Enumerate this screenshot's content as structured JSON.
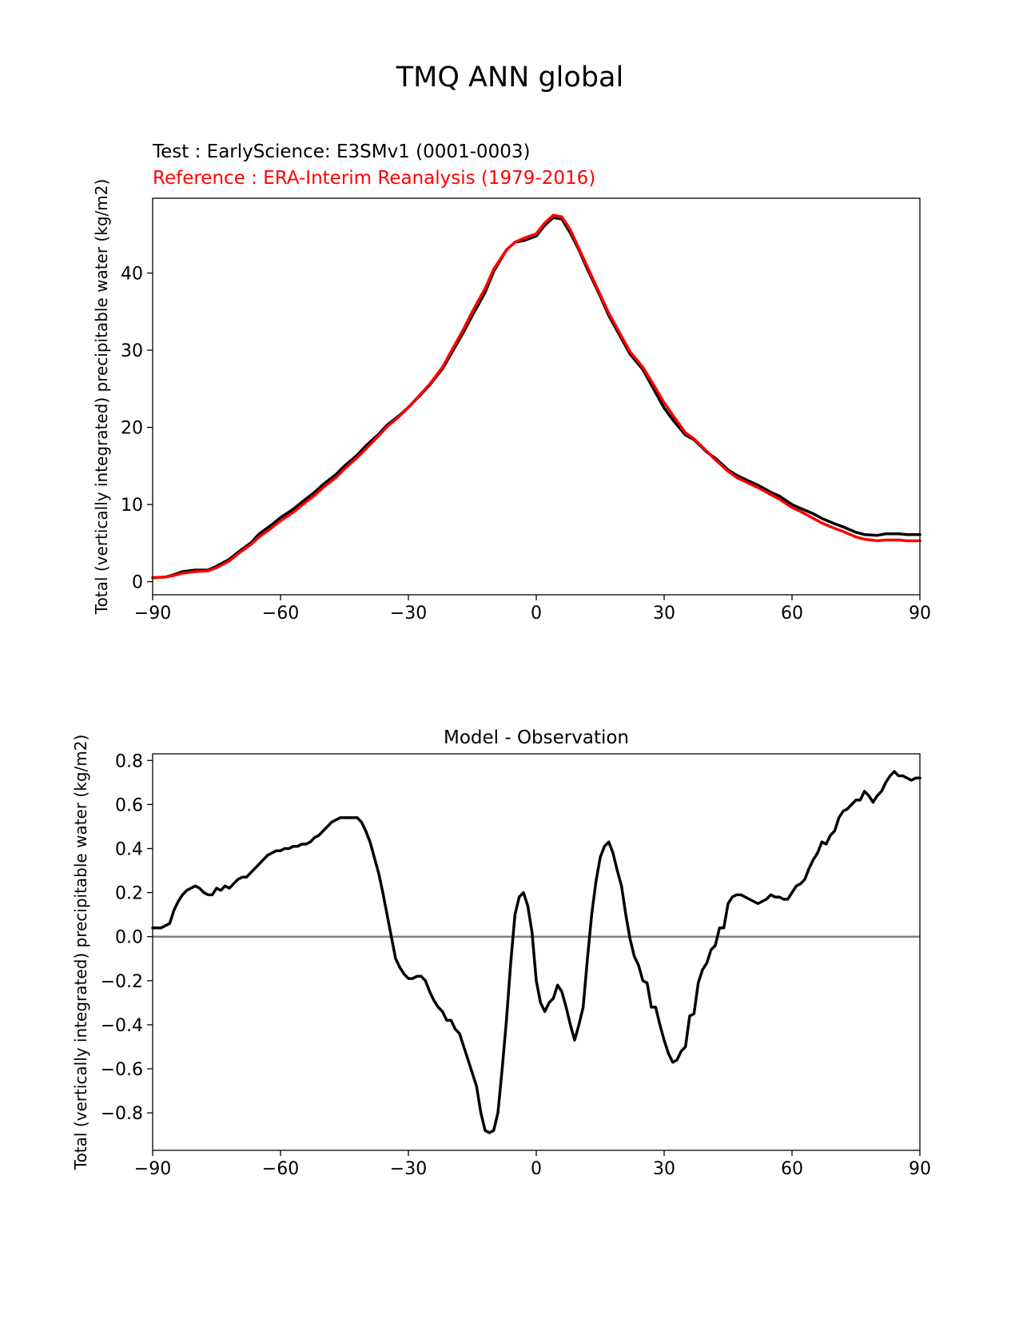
{
  "figure_title": "TMQ ANN global",
  "colors": {
    "test": "#000000",
    "reference": "#ff0000",
    "zero_line": "#808080",
    "axes": "#000000"
  },
  "chart_data": [
    {
      "type": "line",
      "test_label": "Test : EarlyScience: E3SMv1 (0001-0003)",
      "reference_label": "Reference : ERA-Interim Reanalysis (1979-2016)",
      "ylabel": "Total (vertically integrated) precipitable water (kg/m2)",
      "xlabel": "",
      "xlim": [
        -90,
        90
      ],
      "ylim": [
        -1.7,
        49.7
      ],
      "xticks": [
        -90,
        -60,
        -30,
        0,
        30,
        60,
        90
      ],
      "xtick_labels": [
        "−90",
        "−60",
        "−30",
        "0",
        "30",
        "60",
        "90"
      ],
      "yticks": [
        0,
        10,
        20,
        30,
        40
      ],
      "ytick_labels": [
        "0",
        "10",
        "20",
        "30",
        "40"
      ],
      "series": [
        {
          "name": "Test",
          "color": "#000000",
          "x": [
            -90,
            -87,
            -85,
            -83,
            -80,
            -77,
            -75,
            -72,
            -70,
            -67,
            -65,
            -62,
            -60,
            -57,
            -55,
            -52,
            -50,
            -47,
            -45,
            -42,
            -40,
            -37,
            -35,
            -32,
            -30,
            -27,
            -25,
            -22,
            -20,
            -17,
            -15,
            -12,
            -10,
            -7,
            -5,
            -3,
            0,
            2,
            4,
            6,
            8,
            10,
            12,
            15,
            17,
            20,
            22,
            25,
            27,
            30,
            32,
            35,
            37,
            40,
            42,
            45,
            47,
            50,
            52,
            55,
            57,
            60,
            62,
            65,
            67,
            70,
            72,
            75,
            77,
            80,
            82,
            85,
            87,
            90
          ],
          "y": [
            0.5,
            0.6,
            0.9,
            1.3,
            1.5,
            1.5,
            2.0,
            2.9,
            3.8,
            5.0,
            6.2,
            7.4,
            8.3,
            9.4,
            10.3,
            11.6,
            12.6,
            13.9,
            15.0,
            16.4,
            17.6,
            19.1,
            20.3,
            21.6,
            22.6,
            24.3,
            25.5,
            27.6,
            29.5,
            32.4,
            34.5,
            37.5,
            40.2,
            43.0,
            44.0,
            44.2,
            44.8,
            46.2,
            47.2,
            47.0,
            45.2,
            43.0,
            40.5,
            37.0,
            34.5,
            31.5,
            29.5,
            27.5,
            25.5,
            22.5,
            21.0,
            19.0,
            18.4,
            16.8,
            16.0,
            14.5,
            13.8,
            13.0,
            12.5,
            11.6,
            11.1,
            10.0,
            9.5,
            8.8,
            8.2,
            7.5,
            7.1,
            6.4,
            6.1,
            6.0,
            6.2,
            6.2,
            6.1,
            6.1
          ]
        },
        {
          "name": "Reference",
          "color": "#ff0000",
          "x": [
            -90,
            -87,
            -85,
            -83,
            -80,
            -77,
            -75,
            -72,
            -70,
            -67,
            -65,
            -62,
            -60,
            -57,
            -55,
            -52,
            -50,
            -47,
            -45,
            -42,
            -40,
            -37,
            -35,
            -32,
            -30,
            -27,
            -25,
            -22,
            -20,
            -17,
            -15,
            -12,
            -10,
            -7,
            -5,
            -3,
            0,
            2,
            4,
            6,
            8,
            10,
            12,
            15,
            17,
            20,
            22,
            25,
            27,
            30,
            32,
            35,
            37,
            40,
            42,
            45,
            47,
            50,
            52,
            55,
            57,
            60,
            62,
            65,
            67,
            70,
            72,
            75,
            77,
            80,
            82,
            85,
            87,
            90
          ],
          "y": [
            0.5,
            0.6,
            0.8,
            1.1,
            1.3,
            1.4,
            1.8,
            2.7,
            3.6,
            4.8,
            5.8,
            7.0,
            7.9,
            9.0,
            9.9,
            11.2,
            12.2,
            13.5,
            14.6,
            16.1,
            17.2,
            18.9,
            20.1,
            21.5,
            22.6,
            24.4,
            25.6,
            27.8,
            29.8,
            32.8,
            35.0,
            38.0,
            40.5,
            43.0,
            44.0,
            44.5,
            45.1,
            46.5,
            47.5,
            47.3,
            45.6,
            43.2,
            40.8,
            37.2,
            34.8,
            31.8,
            29.8,
            27.8,
            26.0,
            23.2,
            21.6,
            19.3,
            18.5,
            16.9,
            15.8,
            14.3,
            13.5,
            12.7,
            12.2,
            11.3,
            10.7,
            9.6,
            9.1,
            8.2,
            7.6,
            6.9,
            6.5,
            5.8,
            5.5,
            5.3,
            5.4,
            5.4,
            5.3,
            5.3
          ]
        }
      ]
    },
    {
      "type": "line",
      "title": "Model - Observation",
      "ylabel": "Total (vertically integrated) precipitable water (kg/m2)",
      "xlabel": "",
      "xlim": [
        -90,
        90
      ],
      "ylim": [
        -0.97,
        0.83
      ],
      "xticks": [
        -90,
        -60,
        -30,
        0,
        30,
        60,
        90
      ],
      "xtick_labels": [
        "−90",
        "−60",
        "−30",
        "0",
        "30",
        "60",
        "90"
      ],
      "yticks": [
        -0.8,
        -0.6,
        -0.4,
        -0.2,
        0.0,
        0.2,
        0.4,
        0.6,
        0.8
      ],
      "ytick_labels": [
        "−0.8",
        "−0.6",
        "−0.4",
        "−0.2",
        "0.0",
        "0.2",
        "0.4",
        "0.6",
        "0.8"
      ],
      "zero_line": 0,
      "series": [
        {
          "name": "Model - Observation",
          "color": "#000000",
          "x": [
            -90,
            -88,
            -87,
            -86,
            -85,
            -84,
            -83,
            -82,
            -81,
            -80,
            -79,
            -78,
            -77,
            -76,
            -75,
            -74,
            -73,
            -72,
            -71,
            -70,
            -69,
            -68,
            -67,
            -66,
            -65,
            -64,
            -63,
            -62,
            -61,
            -60,
            -59,
            -58,
            -57,
            -56,
            -55,
            -54,
            -53,
            -52,
            -51,
            -50,
            -49,
            -48,
            -47,
            -46,
            -45,
            -44,
            -43,
            -42,
            -41,
            -40,
            -39,
            -38,
            -37,
            -36,
            -35,
            -34,
            -33,
            -32,
            -31,
            -30,
            -29,
            -28,
            -27,
            -26,
            -25,
            -24,
            -23,
            -22,
            -21,
            -20,
            -19,
            -18,
            -17,
            -16,
            -15,
            -14,
            -13,
            -12,
            -11,
            -10,
            -9,
            -8,
            -7,
            -6,
            -5,
            -4,
            -3,
            -2,
            -1,
            0,
            1,
            2,
            3,
            4,
            5,
            6,
            7,
            8,
            9,
            10,
            11,
            12,
            13,
            14,
            15,
            16,
            17,
            18,
            19,
            20,
            21,
            22,
            23,
            24,
            25,
            26,
            27,
            28,
            29,
            30,
            31,
            32,
            33,
            34,
            35,
            36,
            37,
            38,
            39,
            40,
            41,
            42,
            43,
            44,
            45,
            46,
            47,
            48,
            49,
            50,
            51,
            52,
            53,
            54,
            55,
            56,
            57,
            58,
            59,
            60,
            61,
            62,
            63,
            64,
            65,
            66,
            67,
            68,
            69,
            70,
            71,
            72,
            73,
            74,
            75,
            76,
            77,
            78,
            79,
            80,
            81,
            82,
            83,
            84,
            85,
            86,
            87,
            88,
            89,
            90
          ],
          "y": [
            0.04,
            0.04,
            0.05,
            0.06,
            0.12,
            0.16,
            0.19,
            0.21,
            0.22,
            0.23,
            0.22,
            0.2,
            0.19,
            0.19,
            0.22,
            0.21,
            0.23,
            0.22,
            0.24,
            0.26,
            0.27,
            0.27,
            0.29,
            0.31,
            0.33,
            0.35,
            0.37,
            0.38,
            0.39,
            0.39,
            0.4,
            0.4,
            0.41,
            0.41,
            0.42,
            0.42,
            0.43,
            0.45,
            0.46,
            0.48,
            0.5,
            0.52,
            0.53,
            0.54,
            0.54,
            0.54,
            0.54,
            0.54,
            0.52,
            0.48,
            0.43,
            0.36,
            0.29,
            0.2,
            0.1,
            0.0,
            -0.1,
            -0.14,
            -0.17,
            -0.19,
            -0.19,
            -0.18,
            -0.18,
            -0.2,
            -0.25,
            -0.29,
            -0.32,
            -0.34,
            -0.38,
            -0.38,
            -0.42,
            -0.44,
            -0.5,
            -0.56,
            -0.62,
            -0.68,
            -0.8,
            -0.88,
            -0.89,
            -0.88,
            -0.8,
            -0.6,
            -0.38,
            -0.12,
            0.1,
            0.18,
            0.2,
            0.14,
            0.02,
            -0.2,
            -0.3,
            -0.34,
            -0.3,
            -0.28,
            -0.22,
            -0.25,
            -0.32,
            -0.4,
            -0.47,
            -0.4,
            -0.32,
            -0.1,
            0.1,
            0.25,
            0.36,
            0.41,
            0.43,
            0.38,
            0.3,
            0.23,
            0.1,
            -0.01,
            -0.09,
            -0.13,
            -0.2,
            -0.21,
            -0.32,
            -0.32,
            -0.4,
            -0.47,
            -0.53,
            -0.57,
            -0.56,
            -0.52,
            -0.5,
            -0.36,
            -0.35,
            -0.21,
            -0.15,
            -0.12,
            -0.06,
            -0.04,
            0.04,
            0.04,
            0.15,
            0.18,
            0.19,
            0.19,
            0.18,
            0.17,
            0.16,
            0.15,
            0.16,
            0.17,
            0.19,
            0.18,
            0.18,
            0.17,
            0.17,
            0.2,
            0.23,
            0.24,
            0.26,
            0.31,
            0.35,
            0.38,
            0.43,
            0.42,
            0.46,
            0.48,
            0.54,
            0.57,
            0.58,
            0.6,
            0.62,
            0.62,
            0.66,
            0.64,
            0.61,
            0.64,
            0.66,
            0.7,
            0.73,
            0.75,
            0.73,
            0.73,
            0.72,
            0.71,
            0.72,
            0.72
          ]
        }
      ]
    }
  ]
}
